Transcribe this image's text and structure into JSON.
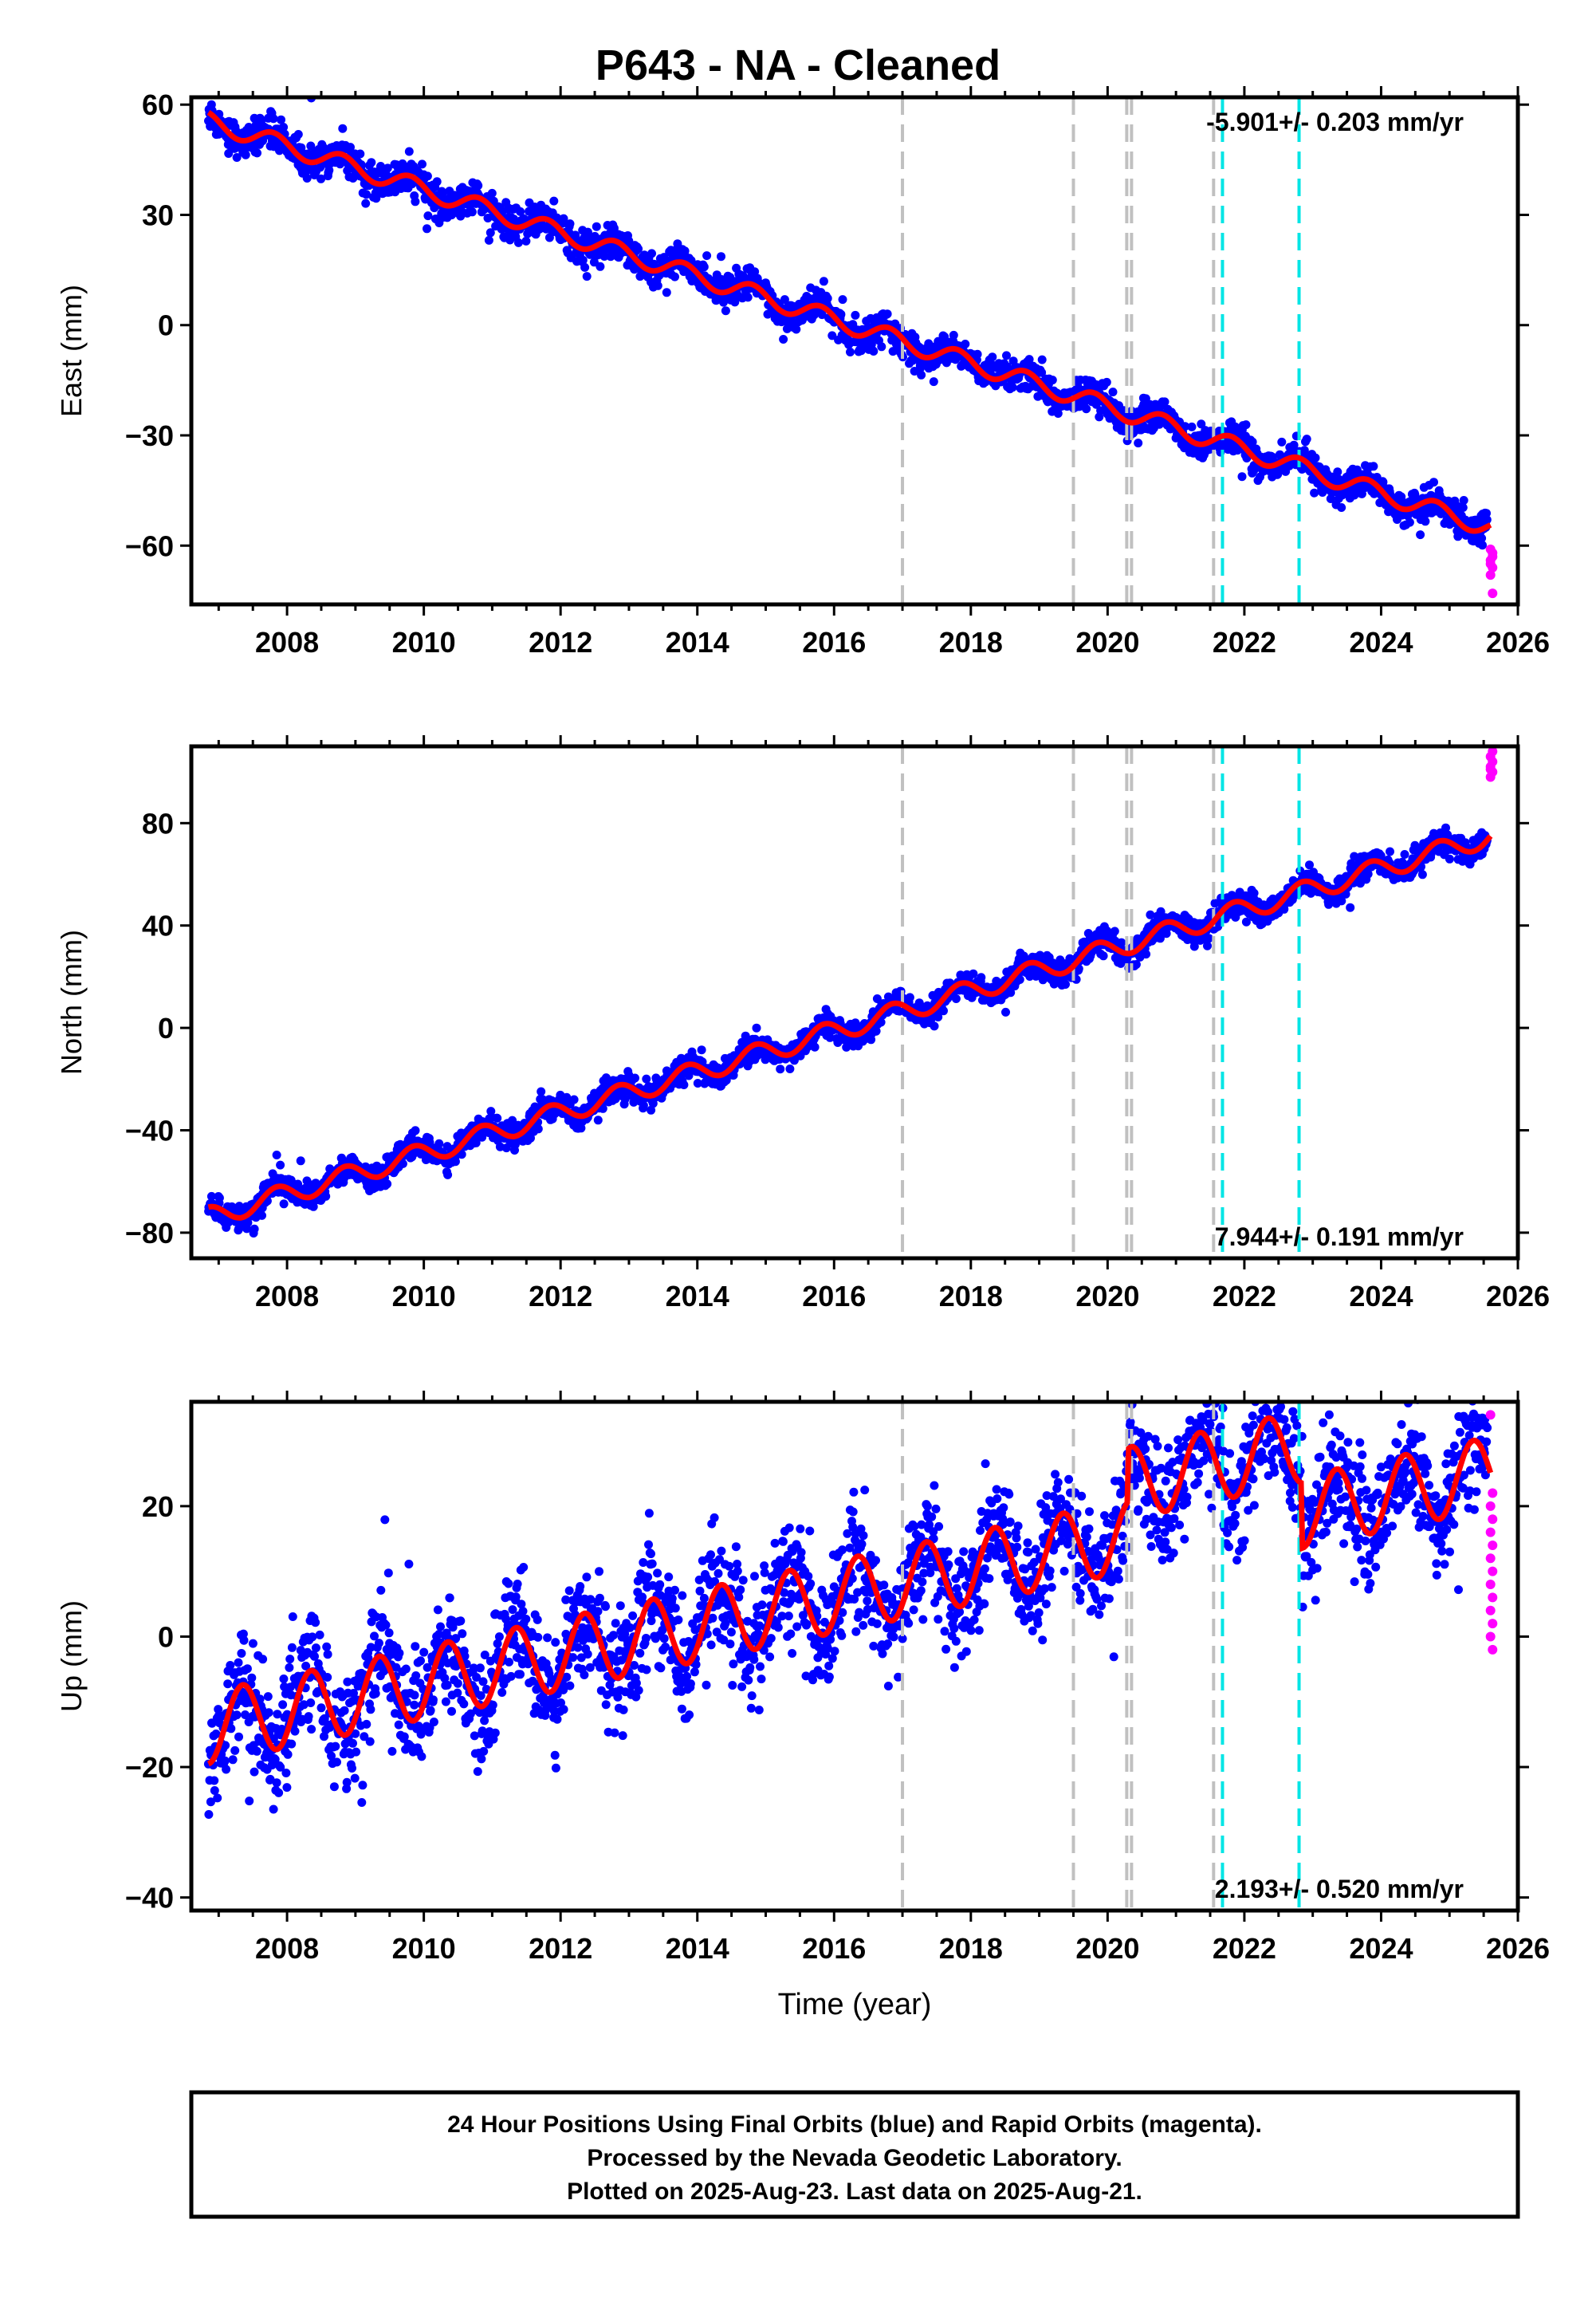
{
  "title": "P643  - NA - Cleaned",
  "chart_data": [
    {
      "type": "scatter",
      "panel": "east",
      "ylabel": "East (mm)",
      "xlim": [
        2006.6,
        2026.0
      ],
      "ylim": [
        -76,
        62
      ],
      "x_ticks": [
        2008,
        2010,
        2012,
        2014,
        2016,
        2018,
        2020,
        2022,
        2024,
        2026
      ],
      "y_ticks": [
        60,
        30,
        0,
        -30,
        -60
      ],
      "y_tick_labels": [
        "60",
        "30",
        "0",
        "−30",
        "−60"
      ],
      "rate_label": "-5.901+/- 0.203 mm/yr",
      "rate_position": "top-right",
      "model": {
        "t0": 2006.85,
        "y0": 55.5,
        "slope": -5.901,
        "annual_amp": 2.5,
        "annual_phase": 0.55
      },
      "scatter_noise": 2.2,
      "rapid_points": [
        -61,
        -63,
        -64,
        -66,
        -68,
        -62,
        -65,
        -73
      ],
      "grid": false,
      "colors": {
        "final": "#0000ff",
        "rapid": "#ff00ff",
        "model": "#ff0000"
      }
    },
    {
      "type": "scatter",
      "panel": "north",
      "ylabel": "North (mm)",
      "xlim": [
        2006.6,
        2026.0
      ],
      "ylim": [
        -90,
        110
      ],
      "x_ticks": [
        2008,
        2010,
        2012,
        2014,
        2016,
        2018,
        2020,
        2022,
        2024,
        2026
      ],
      "y_ticks": [
        80,
        40,
        0,
        -40,
        -80
      ],
      "y_tick_labels": [
        "80",
        "40",
        "0",
        "−40",
        "−80"
      ],
      "rate_label": "7.944+/- 0.191 mm/yr",
      "rate_position": "bottom-right",
      "model": {
        "t0": 2006.85,
        "y0": -74,
        "slope": 7.944,
        "annual_amp": 4.0,
        "annual_phase": 0.6
      },
      "scatter_noise": 2.6,
      "rapid_points": [
        98,
        100,
        102,
        104,
        106,
        108,
        101
      ],
      "grid": false,
      "colors": {
        "final": "#0000ff",
        "rapid": "#ff00ff",
        "model": "#ff0000"
      }
    },
    {
      "type": "scatter",
      "panel": "up",
      "ylabel": "Up (mm)",
      "xlim": [
        2006.6,
        2026.0
      ],
      "ylim": [
        -42,
        36
      ],
      "x_ticks": [
        2008,
        2010,
        2012,
        2014,
        2016,
        2018,
        2020,
        2022,
        2024,
        2026
      ],
      "y_ticks": [
        20,
        0,
        -20,
        -40
      ],
      "y_tick_labels": [
        "20",
        "0",
        "−20",
        "−40"
      ],
      "xlabel": "Time (year)",
      "rate_label": "2.193+/- 0.520 mm/yr",
      "rate_position": "bottom-right",
      "model": {
        "t0": 2006.85,
        "y0": -14,
        "slope": 2.193,
        "annual_amp": 5.5,
        "annual_phase": 0.1,
        "offsets": [
          {
            "x": 2020.3,
            "dy": 8
          },
          {
            "x": 2022.85,
            "dy": -10
          }
        ]
      },
      "scatter_noise": 4.5,
      "rapid_points": [
        34,
        22,
        20,
        18,
        16,
        14,
        12,
        10,
        8,
        6,
        4,
        2,
        0,
        -2
      ],
      "grid": false,
      "colors": {
        "final": "#0000ff",
        "rapid": "#ff00ff",
        "model": "#ff0000"
      }
    }
  ],
  "event_lines": {
    "gray": [
      2017.0,
      2019.5,
      2020.28,
      2020.35,
      2021.55
    ],
    "cyan": [
      2021.68,
      2022.8
    ],
    "colors": {
      "gray": "#c0c0c0",
      "cyan": "#00e5e5"
    }
  },
  "footer": {
    "line1": "24 Hour Positions Using Final Orbits (blue) and Rapid Orbits (magenta).",
    "line2": "Processed by the Nevada Geodetic Laboratory.",
    "line3": "Plotted on 2025-Aug-23. Last data on 2025-Aug-21."
  }
}
